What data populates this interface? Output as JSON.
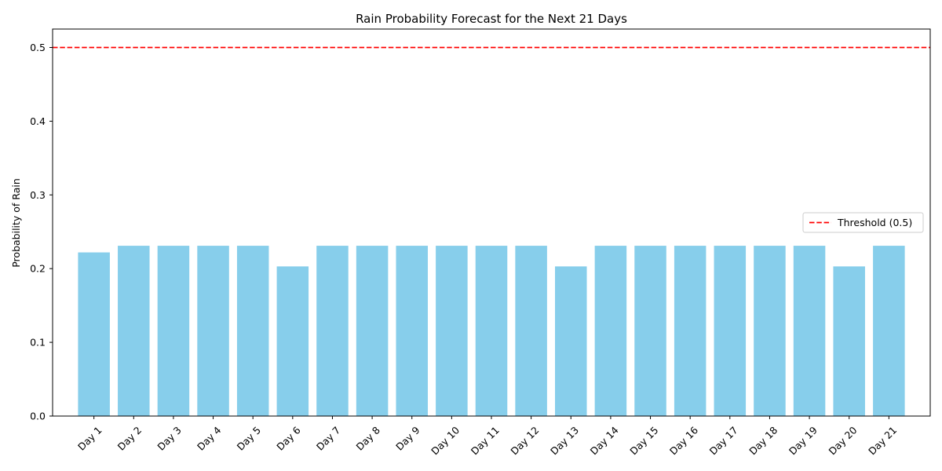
{
  "chart_data": {
    "type": "bar",
    "title": "Rain Probability Forecast for the Next 21 Days",
    "xlabel": "",
    "ylabel": "Probability of Rain",
    "categories": [
      "Day 1",
      "Day 2",
      "Day 3",
      "Day 4",
      "Day 5",
      "Day 6",
      "Day 7",
      "Day 8",
      "Day 9",
      "Day 10",
      "Day 11",
      "Day 12",
      "Day 13",
      "Day 14",
      "Day 15",
      "Day 16",
      "Day 17",
      "Day 18",
      "Day 19",
      "Day 20",
      "Day 21"
    ],
    "values": [
      0.222,
      0.231,
      0.231,
      0.231,
      0.231,
      0.203,
      0.231,
      0.231,
      0.231,
      0.231,
      0.231,
      0.231,
      0.203,
      0.231,
      0.231,
      0.231,
      0.231,
      0.231,
      0.231,
      0.203,
      0.231
    ],
    "ylim": [
      0,
      0.525
    ],
    "yticks": [
      0.0,
      0.1,
      0.2,
      0.3,
      0.4,
      0.5
    ],
    "ytick_labels": [
      "0.0",
      "0.1",
      "0.2",
      "0.3",
      "0.4",
      "0.5"
    ],
    "bar_color": "#87ceeb",
    "threshold": {
      "value": 0.5,
      "label": "Threshold (0.5)",
      "color": "#ff0000",
      "style": "dashed"
    },
    "legend_placement": "center-right",
    "grid": false
  }
}
